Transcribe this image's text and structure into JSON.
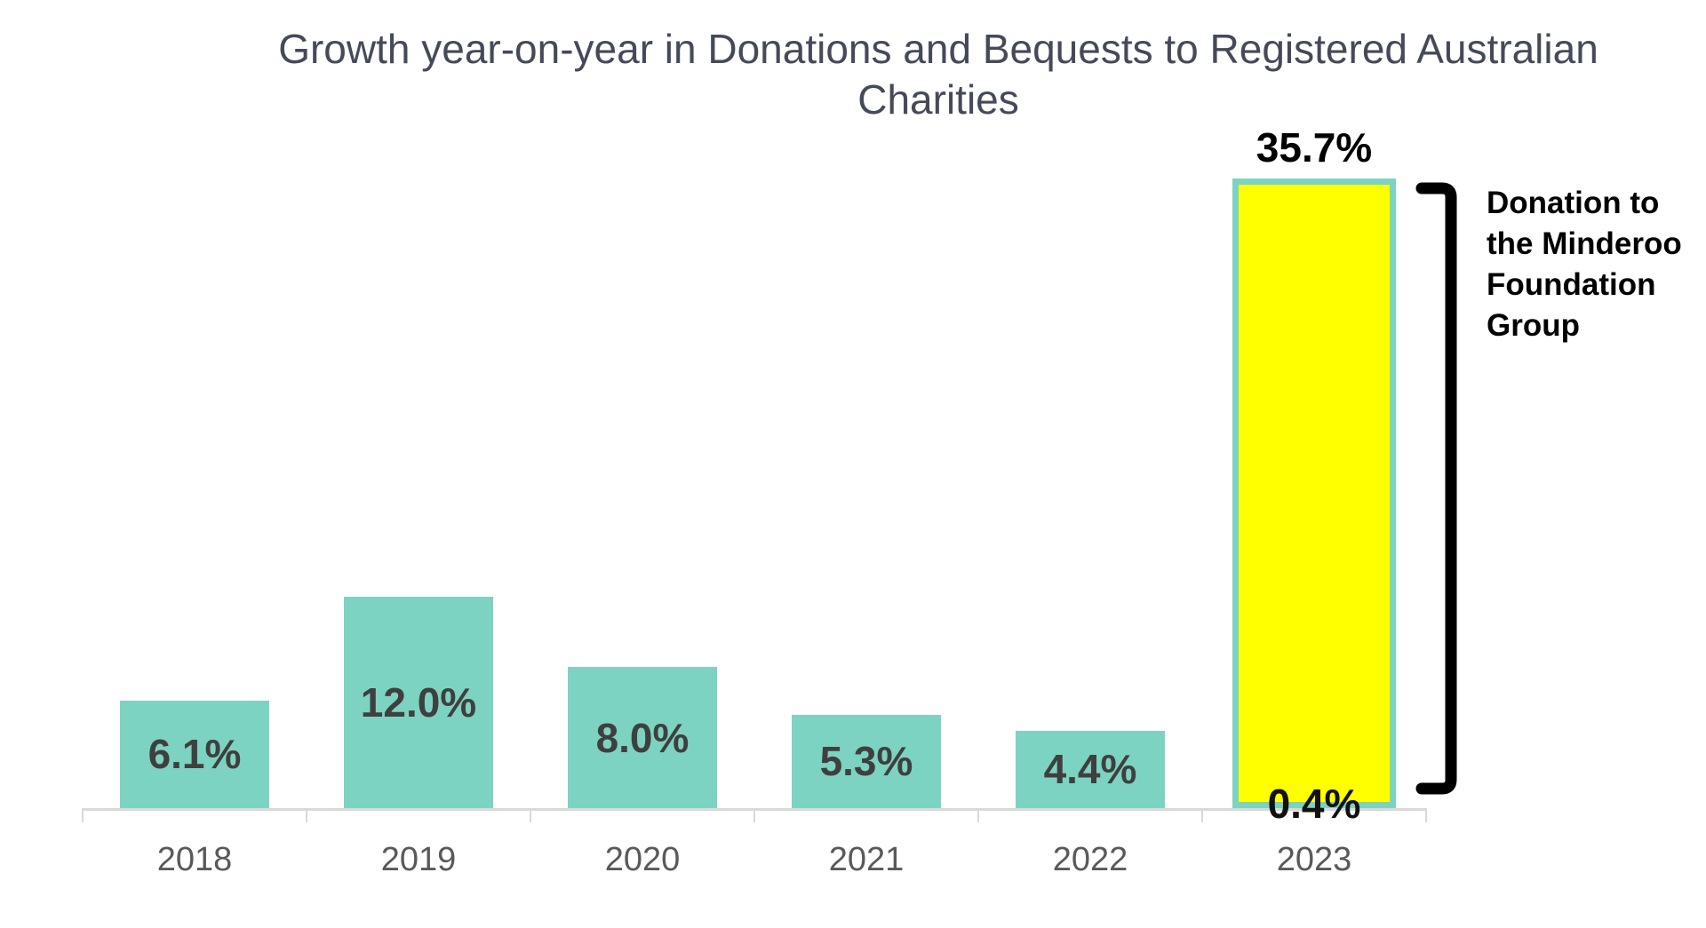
{
  "chart_data": {
    "type": "bar",
    "title": "Growth year-on-year in Donations and Bequests to Registered Australian Charities",
    "xlabel": "",
    "ylabel": "",
    "ylim": [
      0,
      38
    ],
    "grid": false,
    "y_axis_shown": false,
    "categories": [
      "2018",
      "2019",
      "2020",
      "2021",
      "2022",
      "2023"
    ],
    "values": [
      6.1,
      12.0,
      8.0,
      5.3,
      4.4,
      35.7
    ],
    "bars": [
      {
        "category": "2018",
        "value": 6.1,
        "label": "6.1%",
        "label_position": "inside",
        "highlight": false
      },
      {
        "category": "2019",
        "value": 12.0,
        "label": "12.0%",
        "label_position": "inside",
        "highlight": false
      },
      {
        "category": "2020",
        "value": 8.0,
        "label": "8.0%",
        "label_position": "inside",
        "highlight": false
      },
      {
        "category": "2021",
        "value": 5.3,
        "label": "5.3%",
        "label_position": "inside",
        "highlight": false
      },
      {
        "category": "2022",
        "value": 4.4,
        "label": "4.4%",
        "label_position": "inside",
        "highlight": false
      },
      {
        "category": "2023",
        "value": 35.7,
        "label": "35.7%",
        "label_position": "above",
        "highlight": true,
        "sub_value": 0.4,
        "sub_label": "0.4%"
      }
    ],
    "annotation": {
      "text": "Donation to the Minderoo Foundation Group",
      "shape": "right-square-bracket"
    },
    "colors": {
      "bar": "#7dd3c1",
      "highlight_fill": "#ffff00",
      "highlight_border": "#7dd3c1",
      "label_inside": "#3f3f3f",
      "label_above": "#000000",
      "label_sub": "#111111",
      "tick_label": "#595959",
      "axis": "#d9d9d9",
      "title": "#454a59",
      "bracket": "#000000",
      "annotation_text": "#000000"
    }
  }
}
